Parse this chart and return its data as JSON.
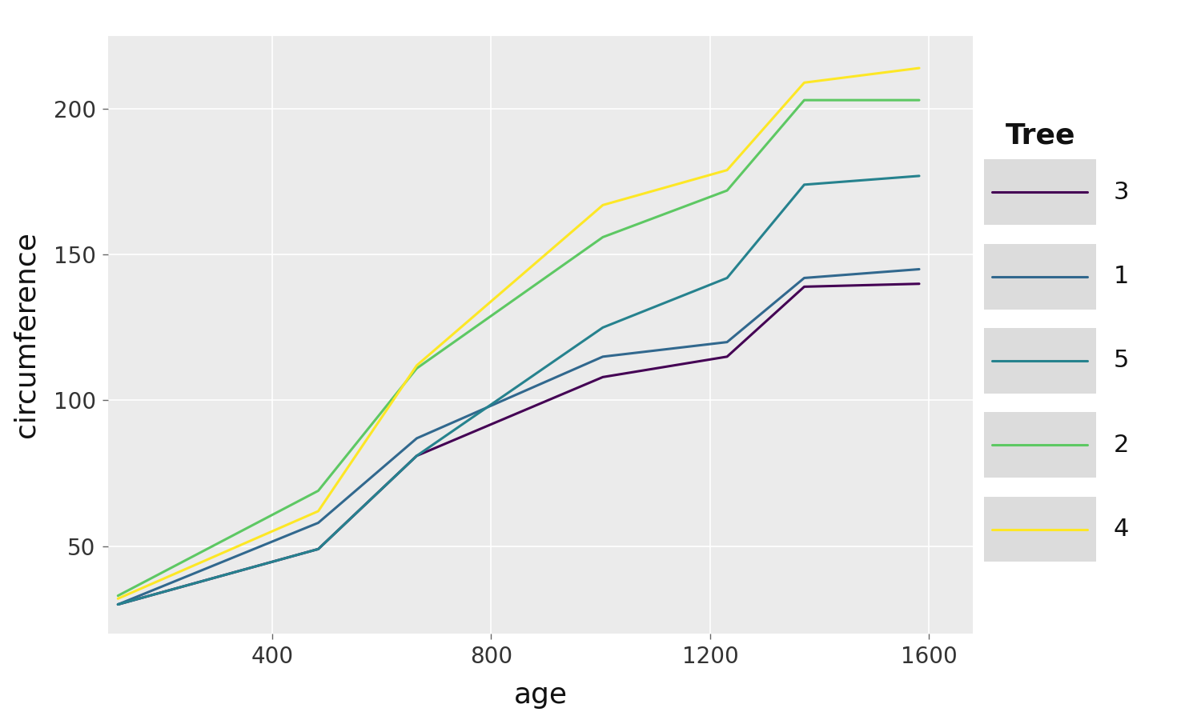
{
  "title": "",
  "xlabel": "age",
  "ylabel": "circumference",
  "plot_bg_color": "#EBEBEB",
  "fig_bg_color": "#FFFFFF",
  "legend_key_bg": "#DCDCDC",
  "grid_color": "#FFFFFF",
  "legend_title": "Tree",
  "series": {
    "3": {
      "age": [
        118,
        484,
        664,
        1004,
        1231,
        1372,
        1582
      ],
      "circ": [
        30,
        49,
        81,
        108,
        115,
        139,
        140
      ],
      "color": "#440154",
      "label": "3"
    },
    "1": {
      "age": [
        118,
        484,
        664,
        1004,
        1231,
        1372,
        1582
      ],
      "circ": [
        30,
        58,
        87,
        115,
        120,
        142,
        145
      ],
      "color": "#31688E",
      "label": "1"
    },
    "5": {
      "age": [
        118,
        484,
        664,
        1004,
        1231,
        1372,
        1582
      ],
      "circ": [
        30,
        49,
        81,
        125,
        142,
        174,
        177
      ],
      "color": "#26828E",
      "label": "5"
    },
    "2": {
      "age": [
        118,
        484,
        664,
        1004,
        1231,
        1372,
        1582
      ],
      "circ": [
        33,
        69,
        111,
        156,
        172,
        203,
        203
      ],
      "color": "#5DC863",
      "label": "2"
    },
    "4": {
      "age": [
        118,
        484,
        664,
        1004,
        1231,
        1372,
        1582
      ],
      "circ": [
        32,
        62,
        112,
        167,
        179,
        209,
        214
      ],
      "color": "#FDE725",
      "label": "4"
    }
  },
  "series_order": [
    "3",
    "1",
    "5",
    "2",
    "4"
  ],
  "xlim": [
    100,
    1680
  ],
  "ylim": [
    20,
    225
  ],
  "xticks": [
    400,
    800,
    1200,
    1600
  ],
  "yticks": [
    50,
    100,
    150,
    200
  ],
  "line_width": 2.2,
  "axis_fontsize": 26,
  "tick_fontsize": 20,
  "legend_fontsize": 22,
  "legend_title_fontsize": 26
}
